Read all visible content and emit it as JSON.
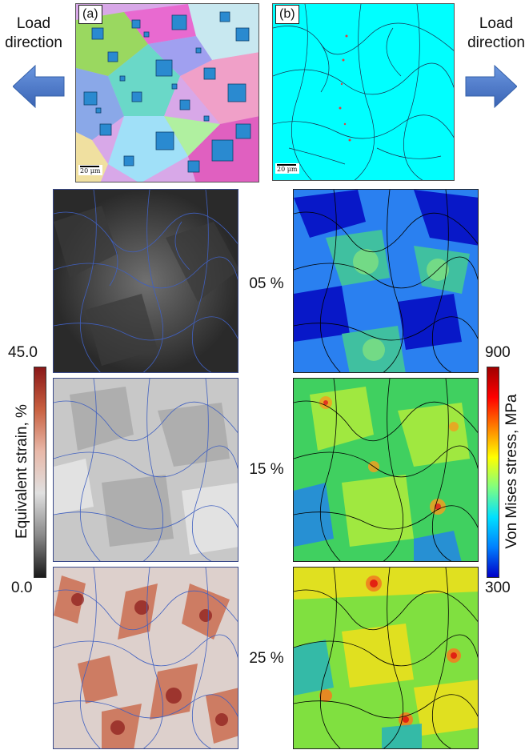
{
  "figure": {
    "load_direction_left": "Load direction",
    "load_direction_right": "Load direction",
    "panel_a_label": "(a)",
    "panel_b_label": "(b)",
    "scale_bar_a": "20 μm",
    "scale_bar_b": "20 μm",
    "strain_levels": [
      "05 %",
      "15 %",
      "25 %"
    ],
    "left_colorbar": {
      "label": "Equivalent strain, %",
      "max": "45.0",
      "min": "0.0",
      "colors": [
        "#1a1a1a",
        "#8a8a8a",
        "#e0e0e0",
        "#e8b8a8",
        "#c86040",
        "#8a1818"
      ]
    },
    "right_colorbar": {
      "label": "Von Mises stress, MPa",
      "max": "900",
      "min": "300",
      "colors": [
        "#0000c8",
        "#0080ff",
        "#00e0ff",
        "#80ff80",
        "#ffff00",
        "#ff8000",
        "#ff0000",
        "#a00000"
      ]
    },
    "arrow_color": "#4a78c8",
    "icons": [
      "arrow-left-icon",
      "arrow-right-icon"
    ]
  }
}
